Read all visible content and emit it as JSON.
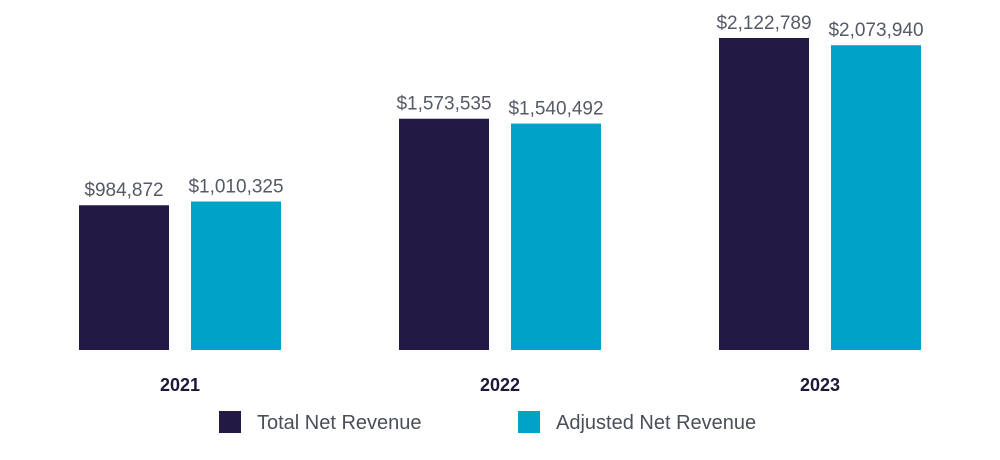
{
  "chart_data": {
    "type": "bar",
    "title": "",
    "xlabel": "",
    "ylabel": "",
    "categories": [
      "2021",
      "2022",
      "2023"
    ],
    "series": [
      {
        "name": "Total Net Revenue",
        "color": "#221a45",
        "values": [
          984872,
          1573535,
          2122789
        ],
        "labels": [
          "$984,872",
          "$1,573,535",
          "$2,122,789"
        ]
      },
      {
        "name": "Adjusted Net Revenue",
        "color": "#00a3c7",
        "values": [
          1010325,
          1540492,
          2073940
        ],
        "labels": [
          "$1,010,325",
          "$1,540,492",
          "$2,073,940"
        ]
      }
    ],
    "ylim": [
      0,
      2122789
    ],
    "grid": false,
    "legend_position": "bottom-center"
  }
}
